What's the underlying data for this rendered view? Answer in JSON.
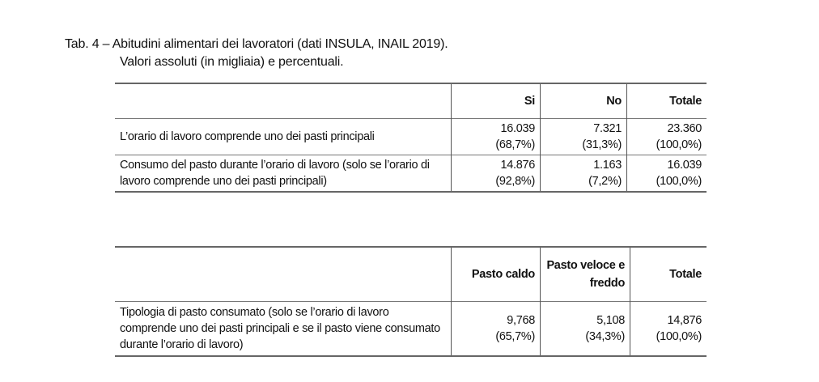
{
  "caption": {
    "line1": "Tab. 4 – Abitudini alimentari dei lavoratori (dati INSULA, INAIL 2019).",
    "line2": "Valori assoluti (in migliaia) e percentuali."
  },
  "table1": {
    "headers": [
      "",
      "Si",
      "No",
      "Totale"
    ],
    "rows": [
      {
        "label": "L’orario di lavoro comprende uno dei pasti principali",
        "cells": [
          [
            "16.039",
            "(68,7%)"
          ],
          [
            "7.321",
            "(31,3%)"
          ],
          [
            "23.360",
            "(100,0%)"
          ]
        ]
      },
      {
        "label": "Consumo del pasto durante l’orario di lavoro (solo se l’orario di lavoro comprende uno dei pasti principali)",
        "cells": [
          [
            "14.876",
            "(92,8%)"
          ],
          [
            "1.163",
            "(7,2%)"
          ],
          [
            "16.039",
            "(100,0%)"
          ]
        ]
      }
    ]
  },
  "table2": {
    "headers": [
      "",
      "Pasto caldo",
      "Pasto veloce e freddo",
      "Totale"
    ],
    "rows": [
      {
        "label": "Tipologia di pasto consumato (solo se l’orario di lavoro comprende uno dei pasti principali e se il pasto viene consumato durante l’orario di lavoro)",
        "cells": [
          [
            "9,768",
            "(65,7%)"
          ],
          [
            "5,108",
            "(34,3%)"
          ],
          [
            "14,876",
            "(100,0%)"
          ]
        ]
      }
    ]
  }
}
